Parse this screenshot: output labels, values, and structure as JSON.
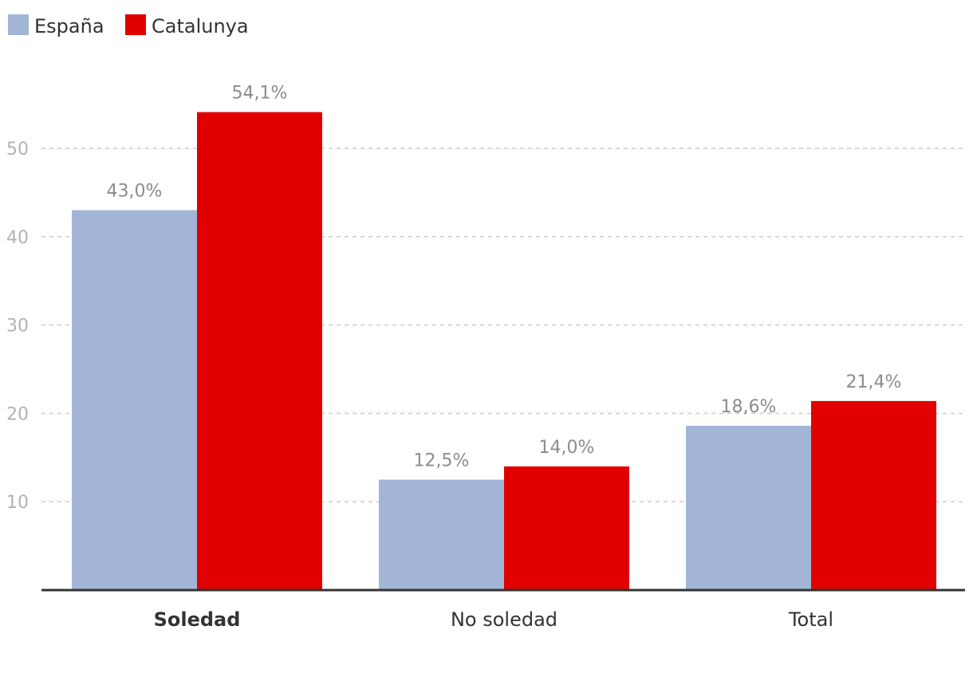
{
  "chart_data": {
    "type": "bar",
    "categories": [
      "Soledad",
      "No soledad",
      "Total"
    ],
    "highlighted_category": "Soledad",
    "series": [
      {
        "name": "España",
        "color": "#a2b5d6",
        "values": [
          43.0,
          12.5,
          18.6
        ],
        "labels": [
          "43,0%",
          "12,5%",
          "18,6%"
        ]
      },
      {
        "name": "Catalunya",
        "color": "#e00000",
        "values": [
          54.1,
          14.0,
          21.4
        ],
        "labels": [
          "54,1%",
          "14,0%",
          "21,4%"
        ]
      }
    ],
    "yticks": [
      10,
      20,
      30,
      40,
      50
    ],
    "ylim": [
      0,
      58
    ],
    "grid": true,
    "legend_position": "top-left",
    "title": "",
    "xlabel": "",
    "ylabel": ""
  }
}
